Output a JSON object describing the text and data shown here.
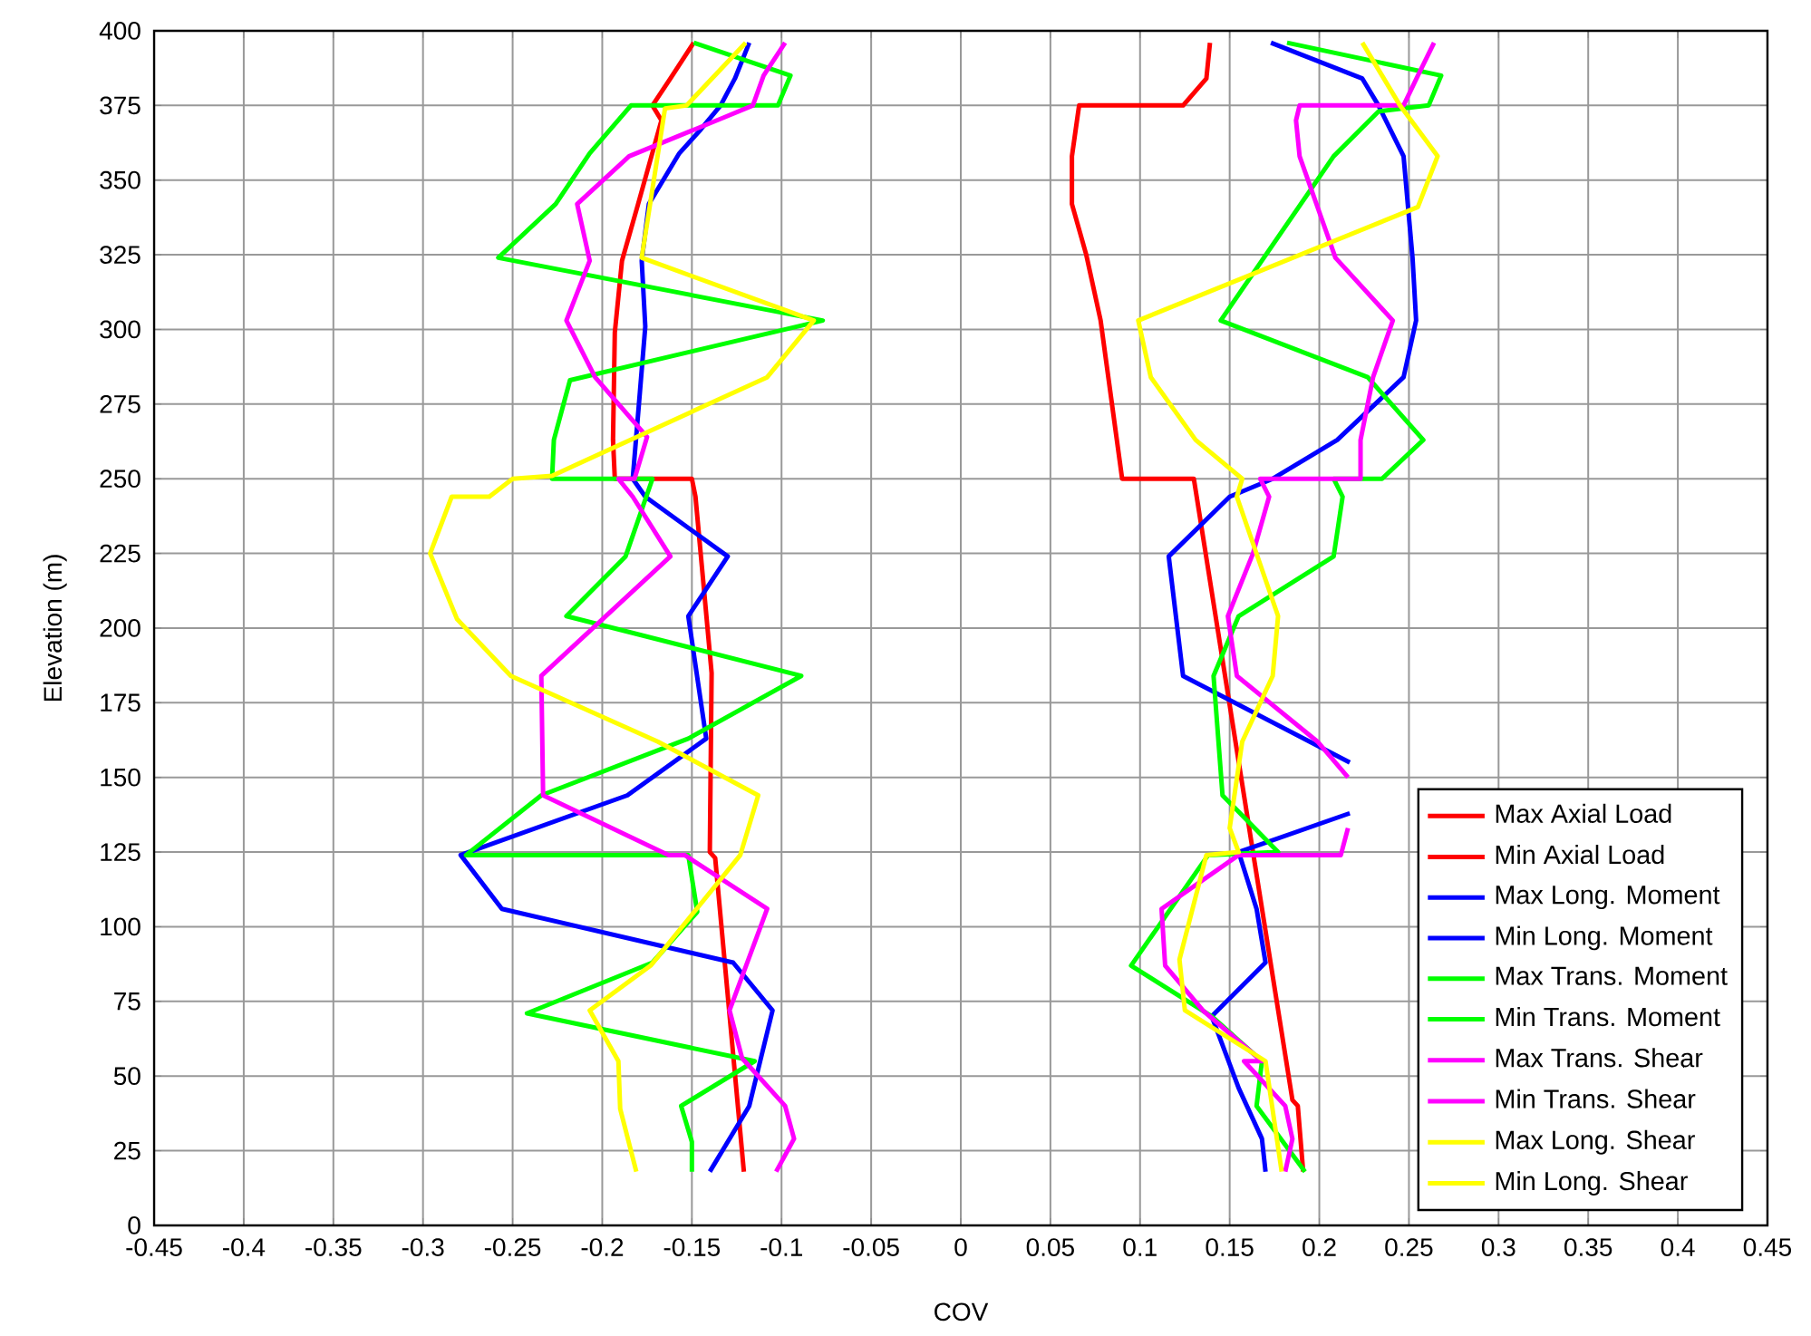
{
  "chart_data": {
    "type": "line",
    "xlabel": "COV",
    "ylabel": "Elevation (m)",
    "xlim": [
      -0.45,
      0.45
    ],
    "ylim": [
      0,
      400
    ],
    "xticks": [
      -0.45,
      -0.4,
      -0.35,
      -0.3,
      -0.25,
      -0.2,
      -0.15,
      -0.1,
      -0.05,
      0,
      0.05,
      0.1,
      0.15,
      0.2,
      0.25,
      0.3,
      0.35,
      0.4,
      0.45
    ],
    "yticks": [
      0,
      25,
      50,
      75,
      100,
      125,
      150,
      175,
      200,
      225,
      250,
      275,
      300,
      325,
      350,
      375,
      400
    ],
    "grid": true,
    "legend": "bottom right",
    "marker": "none",
    "line_style": "solid",
    "series": [
      {
        "name": "Max Axial Load",
        "color": "#ff0000",
        "x": [
          0.139,
          0.137,
          0.124,
          0.066,
          0.062,
          0.062,
          0.07,
          0.078,
          0.09,
          0.13,
          0.163,
          0.185,
          0.188,
          0.191
        ],
        "values": [
          396,
          384,
          375,
          375,
          358,
          342,
          325,
          303,
          250,
          250,
          125,
          42,
          40,
          18
        ]
      },
      {
        "name": "Min Axial Load",
        "color": "#ff0000",
        "x": [
          -0.149,
          -0.162,
          -0.172,
          -0.167,
          -0.18,
          -0.189,
          -0.193,
          -0.194,
          -0.193,
          -0.15,
          -0.148,
          -0.139,
          -0.14,
          -0.137,
          -0.121
        ],
        "values": [
          396,
          384,
          375,
          370,
          342,
          323,
          299,
          263,
          250,
          250,
          244,
          185,
          125,
          123,
          18
        ]
      },
      {
        "name": "Max Long. Moment",
        "color": "#0000ff",
        "x": [
          0.173,
          0.224,
          0.233,
          0.247,
          0.252,
          0.254,
          0.247,
          0.21,
          0.174,
          0.15,
          0.116,
          0.124,
          0.217,
          null,
          0.217,
          0.155,
          0.165,
          0.17,
          0.14,
          0.155,
          0.168,
          0.17
        ],
        "values": [
          396,
          384,
          375,
          358,
          324,
          303,
          284,
          263,
          250,
          244,
          224,
          184,
          155,
          null,
          138,
          125,
          106,
          88,
          70,
          46,
          29,
          18
        ]
      },
      {
        "name": "Min Long. Moment",
        "color": "#0000ff",
        "x": [
          -0.118,
          -0.126,
          -0.134,
          -0.145,
          -0.157,
          -0.174,
          -0.178,
          -0.176,
          -0.179,
          -0.183,
          -0.176,
          -0.13,
          -0.152,
          -0.142,
          -0.186,
          -0.279,
          -0.256,
          -0.127,
          -0.105,
          -0.118,
          -0.14
        ],
        "values": [
          396,
          384,
          375,
          367,
          359,
          342,
          323,
          301,
          279,
          250,
          244,
          224,
          204,
          163,
          144,
          124,
          106,
          88,
          72,
          40,
          18
        ]
      },
      {
        "name": "Max Trans. Moment",
        "color": "#00ff00",
        "x": [
          0.182,
          0.268,
          0.261,
          0.233,
          0.208,
          0.145,
          0.227,
          0.258,
          0.235,
          0.208,
          0.213,
          0.208,
          0.155,
          0.141,
          0.146,
          0.177,
          0.138,
          0.095,
          0.14,
          0.168,
          0.165,
          0.192
        ],
        "values": [
          396,
          385,
          375,
          373,
          358,
          303,
          284,
          263,
          250,
          250,
          244,
          224,
          204,
          184,
          144,
          125,
          124,
          87,
          70,
          55,
          40,
          18
        ]
      },
      {
        "name": "Min Trans. Moment",
        "color": "#00ff00",
        "x": [
          -0.149,
          -0.095,
          -0.102,
          -0.184,
          -0.207,
          -0.226,
          -0.258,
          -0.077,
          -0.218,
          -0.227,
          -0.228,
          -0.172,
          -0.187,
          -0.22,
          -0.089,
          -0.152,
          -0.234,
          -0.276,
          -0.152,
          -0.147,
          -0.172,
          -0.242,
          -0.115,
          -0.156,
          -0.15,
          -0.15
        ],
        "values": [
          396,
          385,
          375,
          375,
          359,
          342,
          324,
          303,
          283,
          263,
          250,
          250,
          224,
          204,
          184,
          163,
          144,
          124,
          124,
          105,
          88,
          71,
          55,
          40,
          28,
          18
        ]
      },
      {
        "name": "Max Trans. Shear",
        "color": "#ff00ff",
        "x": [
          0.264,
          0.255,
          0.247,
          0.189,
          0.187,
          0.189,
          0.209,
          0.241,
          0.23,
          0.223,
          0.223,
          0.167,
          0.172,
          0.163,
          0.149,
          0.154,
          0.199,
          0.216,
          null,
          0.216,
          0.212,
          0.155,
          0.112,
          0.114,
          0.135,
          0.168,
          0.158,
          0.181,
          0.185,
          0.181
        ],
        "values": [
          396,
          385,
          375,
          375,
          370,
          358,
          324,
          303,
          284,
          263,
          250,
          250,
          244,
          225,
          204,
          184,
          162,
          150,
          null,
          133,
          124,
          124,
          106,
          87,
          72,
          55,
          55,
          40,
          29,
          18
        ]
      },
      {
        "name": "Min Trans. Shear",
        "color": "#ff00ff",
        "x": [
          -0.098,
          -0.11,
          -0.116,
          -0.132,
          -0.185,
          -0.214,
          -0.207,
          -0.22,
          -0.204,
          -0.175,
          -0.182,
          -0.191,
          -0.183,
          -0.162,
          -0.234,
          -0.233,
          -0.163,
          -0.154,
          -0.108,
          -0.129,
          -0.122,
          -0.098,
          -0.093,
          -0.103
        ],
        "values": [
          396,
          385,
          375,
          371,
          358,
          342,
          323,
          303,
          284,
          264,
          250,
          250,
          244,
          224,
          184,
          144,
          124,
          124,
          106,
          72,
          56,
          40,
          29,
          18
        ]
      },
      {
        "name": "Max Long. Shear",
        "color": "#ffff00",
        "x": [
          0.224,
          0.235,
          0.245,
          0.266,
          0.255,
          0.099,
          0.106,
          0.131,
          0.157,
          0.154,
          0.177,
          0.174,
          0.157,
          0.15,
          0.155,
          0.137,
          0.122,
          0.125,
          0.17,
          0.179
        ],
        "values": [
          396,
          385,
          375,
          358,
          341,
          303,
          284,
          263,
          250,
          244,
          204,
          184,
          162,
          133,
          125,
          124,
          89,
          72,
          55,
          18
        ]
      },
      {
        "name": "Min Long. Shear",
        "color": "#ffff00",
        "x": [
          -0.12,
          -0.153,
          -0.165,
          -0.178,
          -0.082,
          -0.108,
          -0.228,
          -0.25,
          -0.263,
          -0.284,
          -0.296,
          -0.281,
          -0.251,
          -0.169,
          -0.113,
          -0.123,
          -0.173,
          -0.207,
          -0.191,
          -0.19,
          -0.181
        ],
        "values": [
          396,
          375,
          374,
          324,
          303,
          284,
          251,
          250,
          244,
          244,
          225,
          203,
          184,
          162,
          144,
          124,
          87,
          72,
          55,
          39,
          18
        ]
      }
    ]
  }
}
